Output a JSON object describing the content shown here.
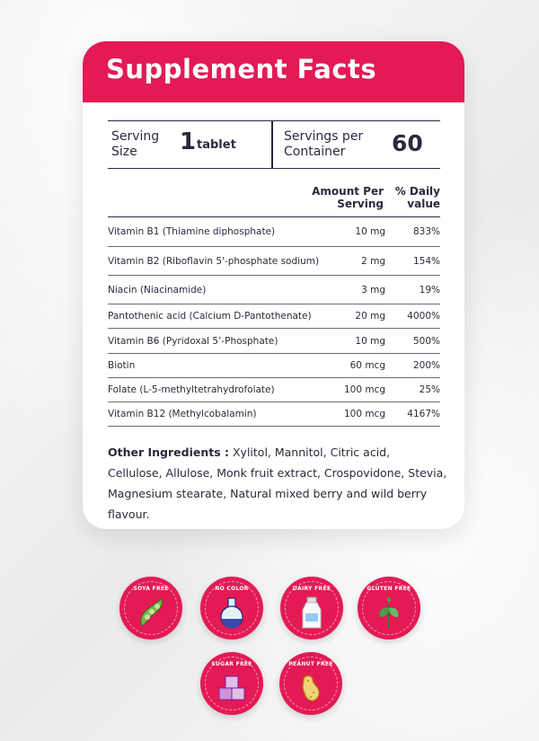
{
  "title": "Supplement Facts",
  "serving": {
    "size_label": "Serving Size",
    "size_value": "1",
    "size_unit": "tablet",
    "servings_label": "Servings per Container",
    "servings_value": "60"
  },
  "columns": {
    "amount": "Amount Per Serving",
    "daily_value": "% Daily value"
  },
  "nutrients": [
    {
      "name": "Vitamin B1 (Thiamine diphosphate)",
      "amount": "10 mg",
      "dv": "833%"
    },
    {
      "name": "Vitamin B2 (Riboflavin 5'-phosphate sodium)",
      "amount": "2 mg",
      "dv": "154%"
    },
    {
      "name": "Niacin (Niacinamide)",
      "amount": "3 mg",
      "dv": "19%"
    },
    {
      "name": "Pantothenic acid (Calcium D-Pantothenate)",
      "amount": "20 mg",
      "dv": "4000%"
    },
    {
      "name": "Vitamin B6 (Pyridoxal 5’-Phosphate)",
      "amount": "10 mg",
      "dv": "500%"
    },
    {
      "name": "Biotin",
      "amount": "60 mcg",
      "dv": "200%"
    },
    {
      "name": "Folate (L-5-methyltetrahydrofolate)",
      "amount": "100 mcg",
      "dv": "25%"
    },
    {
      "name": "Vitamin B12 (Methylcobalamin)",
      "amount": "100 mcg",
      "dv": "4167%"
    }
  ],
  "ingredients": {
    "label": "Other Ingredients :",
    "text": " Xylitol, Mannitol, Citric acid, Cellulose, Allulose, Monk fruit extract,  Crospovidone, Stevia, Magnesium stearate, Natural mixed berry and wild berry flavour."
  },
  "badges": [
    {
      "label": "SOYA FREE",
      "icon": "soybean-icon"
    },
    {
      "label": "NO COLOR",
      "icon": "flask-icon"
    },
    {
      "label": "DAIRY FREE",
      "icon": "milk-bottle-icon"
    },
    {
      "label": "GLUTEN FREE",
      "icon": "leaf-icon"
    },
    {
      "label": "SUGAR FREE",
      "icon": "sugar-cubes-icon"
    },
    {
      "label": "PEANUT FREE",
      "icon": "peanut-icon"
    }
  ],
  "colors": {
    "brand": "#e41a55",
    "text": "#2a2a3c"
  }
}
